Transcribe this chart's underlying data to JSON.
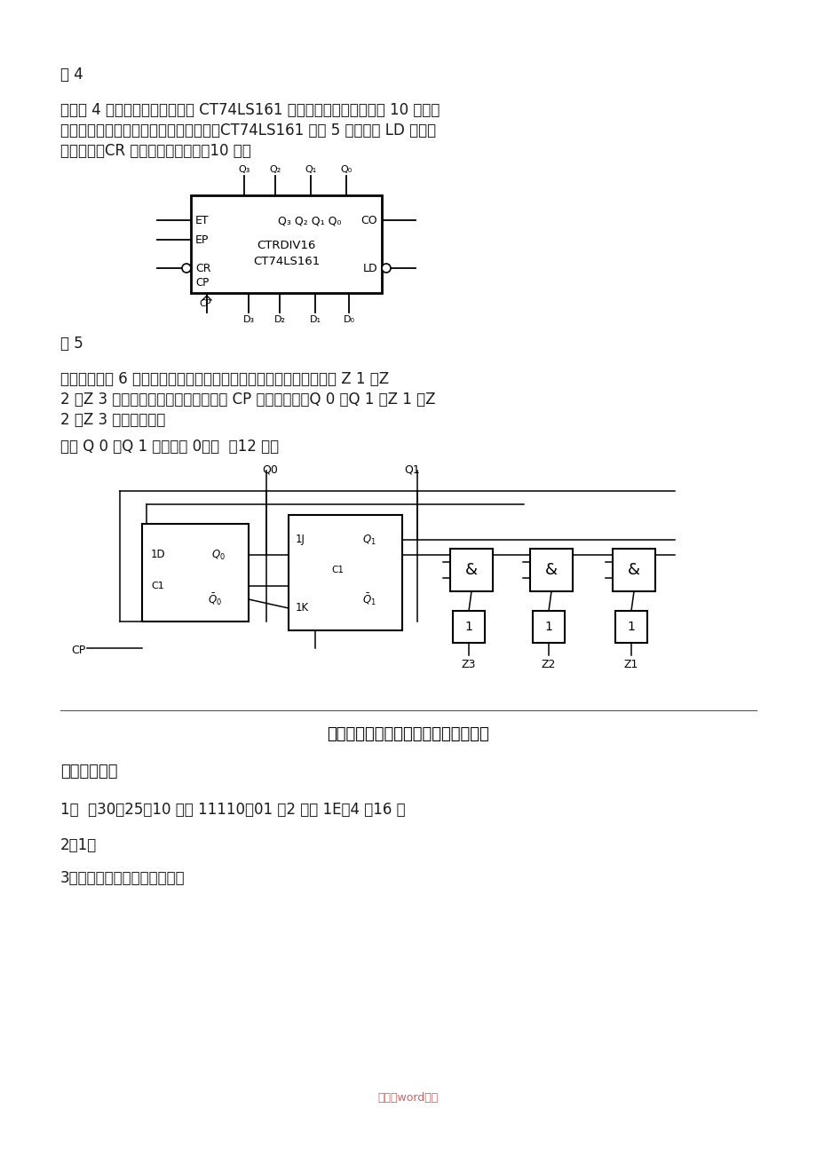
{
  "bg_color": "#ffffff",
  "text_color": "#1a1a1a",
  "watermark": "整理为word格式",
  "watermark_color": "#cc4444",
  "fig4_label": "图 4",
  "sec7_lines": [
    "七、用 4 位二进制计数集成芯片 CT74LS161 采用两种方法实现模値为 10 的计数",
    "器，要求画出接线图和全状态转换图。（CT74LS161 如图 5 所示，其 LD 端为同",
    "步置数端，CR 为异步复位端）。（10 分）"
  ],
  "fig5_label": "图 5",
  "sec8_lines": [
    "八、电路如图 6 所示，试写出电路的激励方程，状态转移方程，求出 Z 1 、Z",
    "2 、Z 3 的输出逻辑表达式，并画出在 CP 脉冲作用下，Q 0 、Q 1 、Z 1 、Z",
    "2 、Z 3 的输出波形。"
  ],
  "sec8_note": "（设 Q 0 、Q 1 的初态为 0。）  （12 分）",
  "answer_title": "数字电子技术基础试题（一）参考答案",
  "ans_header": "一、填空题：",
  "ans1": "1．  （30．25）10 ＝（ 11110．01 ）2 ＝（ 1E．4 ）16 。",
  "ans2": "2．1。",
  "ans3": "3．高电平、低电平和高阻态。"
}
